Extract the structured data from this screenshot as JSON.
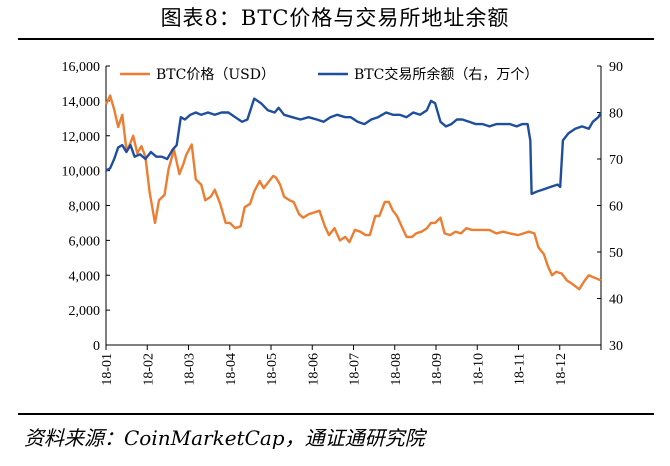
{
  "figure": {
    "title": "图表8：BTC价格与交易所地址余额",
    "source": "资料来源：CoinMarketCap，通证通研究院"
  },
  "chart_data": {
    "type": "line",
    "title": "图表8：BTC价格与交易所地址余额",
    "x_tick_labels": [
      "18-01",
      "18-02",
      "18-03",
      "18-04",
      "18-05",
      "18-06",
      "18-07",
      "18-08",
      "18-09",
      "18-10",
      "18-11",
      "18-12"
    ],
    "y_left": {
      "ticks": [
        "0",
        "2,000",
        "4,000",
        "6,000",
        "8,000",
        "10,000",
        "12,000",
        "14,000",
        "16,000"
      ],
      "range": [
        0,
        16000
      ]
    },
    "y_right": {
      "ticks": [
        "30",
        "40",
        "50",
        "60",
        "70",
        "80",
        "90"
      ],
      "range": [
        30,
        90
      ]
    },
    "legend_placement": "top",
    "series": [
      {
        "name": "BTC价格（USD）",
        "axis": "left",
        "color": "#ED7D31",
        "points": [
          [
            "2018-01-01",
            13800
          ],
          [
            "2018-01-04",
            14300
          ],
          [
            "2018-01-07",
            13500
          ],
          [
            "2018-01-10",
            12500
          ],
          [
            "2018-01-13",
            13200
          ],
          [
            "2018-01-16",
            11200
          ],
          [
            "2018-01-18",
            11400
          ],
          [
            "2018-01-21",
            12000
          ],
          [
            "2018-01-24",
            11000
          ],
          [
            "2018-01-27",
            11400
          ],
          [
            "2018-01-30",
            10800
          ],
          [
            "2018-02-02",
            8800
          ],
          [
            "2018-02-06",
            7000
          ],
          [
            "2018-02-09",
            8300
          ],
          [
            "2018-02-13",
            8600
          ],
          [
            "2018-02-16",
            10100
          ],
          [
            "2018-02-20",
            11200
          ],
          [
            "2018-02-24",
            9800
          ],
          [
            "2018-02-27",
            10400
          ],
          [
            "2018-03-01",
            10900
          ],
          [
            "2018-03-05",
            11500
          ],
          [
            "2018-03-08",
            9500
          ],
          [
            "2018-03-12",
            9200
          ],
          [
            "2018-03-15",
            8300
          ],
          [
            "2018-03-19",
            8500
          ],
          [
            "2018-03-22",
            8900
          ],
          [
            "2018-03-26",
            8100
          ],
          [
            "2018-03-30",
            7000
          ],
          [
            "2018-04-02",
            7000
          ],
          [
            "2018-04-06",
            6700
          ],
          [
            "2018-04-10",
            6800
          ],
          [
            "2018-04-13",
            7900
          ],
          [
            "2018-04-17",
            8100
          ],
          [
            "2018-04-20",
            8800
          ],
          [
            "2018-04-24",
            9400
          ],
          [
            "2018-04-27",
            9000
          ],
          [
            "2018-04-30",
            9300
          ],
          [
            "2018-05-04",
            9700
          ],
          [
            "2018-05-06",
            9600
          ],
          [
            "2018-05-09",
            9200
          ],
          [
            "2018-05-12",
            8500
          ],
          [
            "2018-05-16",
            8300
          ],
          [
            "2018-05-19",
            8200
          ],
          [
            "2018-05-23",
            7500
          ],
          [
            "2018-05-26",
            7300
          ],
          [
            "2018-05-30",
            7500
          ],
          [
            "2018-06-03",
            7600
          ],
          [
            "2018-06-07",
            7700
          ],
          [
            "2018-06-11",
            6800
          ],
          [
            "2018-06-14",
            6300
          ],
          [
            "2018-06-18",
            6700
          ],
          [
            "2018-06-22",
            6000
          ],
          [
            "2018-06-26",
            6200
          ],
          [
            "2018-06-29",
            5900
          ],
          [
            "2018-07-03",
            6600
          ],
          [
            "2018-07-07",
            6500
          ],
          [
            "2018-07-11",
            6300
          ],
          [
            "2018-07-14",
            6300
          ],
          [
            "2018-07-18",
            7400
          ],
          [
            "2018-07-21",
            7400
          ],
          [
            "2018-07-25",
            8200
          ],
          [
            "2018-07-28",
            8200
          ],
          [
            "2018-07-31",
            7700
          ],
          [
            "2018-08-03",
            7400
          ],
          [
            "2018-08-07",
            6700
          ],
          [
            "2018-08-10",
            6200
          ],
          [
            "2018-08-14",
            6200
          ],
          [
            "2018-08-17",
            6400
          ],
          [
            "2018-08-21",
            6500
          ],
          [
            "2018-08-25",
            6700
          ],
          [
            "2018-08-28",
            7000
          ],
          [
            "2018-08-31",
            7000
          ],
          [
            "2018-09-04",
            7300
          ],
          [
            "2018-09-07",
            6400
          ],
          [
            "2018-09-11",
            6300
          ],
          [
            "2018-09-15",
            6500
          ],
          [
            "2018-09-19",
            6400
          ],
          [
            "2018-09-23",
            6700
          ],
          [
            "2018-09-27",
            6600
          ],
          [
            "2018-09-30",
            6600
          ],
          [
            "2018-10-05",
            6600
          ],
          [
            "2018-10-10",
            6600
          ],
          [
            "2018-10-15",
            6400
          ],
          [
            "2018-10-20",
            6500
          ],
          [
            "2018-10-25",
            6400
          ],
          [
            "2018-10-31",
            6300
          ],
          [
            "2018-11-04",
            6400
          ],
          [
            "2018-11-08",
            6500
          ],
          [
            "2018-11-12",
            6400
          ],
          [
            "2018-11-15",
            5600
          ],
          [
            "2018-11-19",
            5200
          ],
          [
            "2018-11-22",
            4500
          ],
          [
            "2018-11-25",
            4000
          ],
          [
            "2018-11-28",
            4200
          ],
          [
            "2018-12-02",
            4100
          ],
          [
            "2018-12-06",
            3700
          ],
          [
            "2018-12-10",
            3500
          ],
          [
            "2018-12-15",
            3200
          ],
          [
            "2018-12-19",
            3700
          ],
          [
            "2018-12-22",
            4000
          ],
          [
            "2018-12-25",
            3900
          ],
          [
            "2018-12-28",
            3800
          ],
          [
            "2018-12-31",
            3700
          ]
        ]
      },
      {
        "name": "BTC交易所余额（右，万个）",
        "axis": "right",
        "color": "#1F4E9F",
        "points": [
          [
            "2018-01-01",
            67.5
          ],
          [
            "2018-01-04",
            68
          ],
          [
            "2018-01-07",
            70
          ],
          [
            "2018-01-10",
            72.5
          ],
          [
            "2018-01-13",
            73
          ],
          [
            "2018-01-16",
            71.5
          ],
          [
            "2018-01-19",
            73
          ],
          [
            "2018-01-22",
            70.5
          ],
          [
            "2018-01-26",
            71
          ],
          [
            "2018-01-30",
            70
          ],
          [
            "2018-02-03",
            71.5
          ],
          [
            "2018-02-07",
            70.5
          ],
          [
            "2018-02-11",
            70.5
          ],
          [
            "2018-02-15",
            70
          ],
          [
            "2018-02-19",
            72
          ],
          [
            "2018-02-22",
            73
          ],
          [
            "2018-02-25",
            79
          ],
          [
            "2018-02-28",
            78.5
          ],
          [
            "2018-03-04",
            79.5
          ],
          [
            "2018-03-08",
            80
          ],
          [
            "2018-03-12",
            79.5
          ],
          [
            "2018-03-17",
            80
          ],
          [
            "2018-03-22",
            79.5
          ],
          [
            "2018-03-27",
            80
          ],
          [
            "2018-04-01",
            80
          ],
          [
            "2018-04-06",
            79
          ],
          [
            "2018-04-11",
            78
          ],
          [
            "2018-04-15",
            78.5
          ],
          [
            "2018-04-20",
            83
          ],
          [
            "2018-04-25",
            82
          ],
          [
            "2018-04-30",
            80.5
          ],
          [
            "2018-05-05",
            80
          ],
          [
            "2018-05-08",
            81
          ],
          [
            "2018-05-12",
            79.5
          ],
          [
            "2018-05-18",
            79
          ],
          [
            "2018-05-24",
            78.5
          ],
          [
            "2018-05-30",
            79
          ],
          [
            "2018-06-05",
            78.5
          ],
          [
            "2018-06-10",
            78
          ],
          [
            "2018-06-15",
            79
          ],
          [
            "2018-06-20",
            79.5
          ],
          [
            "2018-06-26",
            79
          ],
          [
            "2018-06-30",
            79
          ],
          [
            "2018-07-05",
            78
          ],
          [
            "2018-07-10",
            77.5
          ],
          [
            "2018-07-15",
            78.5
          ],
          [
            "2018-07-20",
            79
          ],
          [
            "2018-07-26",
            80
          ],
          [
            "2018-07-31",
            79.5
          ],
          [
            "2018-08-05",
            79.5
          ],
          [
            "2018-08-10",
            79
          ],
          [
            "2018-08-15",
            80
          ],
          [
            "2018-08-20",
            79.5
          ],
          [
            "2018-08-25",
            80.5
          ],
          [
            "2018-08-28",
            82.5
          ],
          [
            "2018-08-31",
            82
          ],
          [
            "2018-09-04",
            78
          ],
          [
            "2018-09-08",
            77
          ],
          [
            "2018-09-12",
            77.5
          ],
          [
            "2018-09-16",
            78.5
          ],
          [
            "2018-09-20",
            78.5
          ],
          [
            "2018-09-25",
            78
          ],
          [
            "2018-09-30",
            77.5
          ],
          [
            "2018-10-05",
            77.5
          ],
          [
            "2018-10-10",
            77
          ],
          [
            "2018-10-15",
            77.5
          ],
          [
            "2018-10-20",
            77.5
          ],
          [
            "2018-10-25",
            77.5
          ],
          [
            "2018-10-30",
            77
          ],
          [
            "2018-11-03",
            77.5
          ],
          [
            "2018-11-07",
            77.5
          ],
          [
            "2018-11-09",
            74
          ],
          [
            "2018-11-10",
            62.5
          ],
          [
            "2018-11-14",
            63
          ],
          [
            "2018-11-19",
            63.5
          ],
          [
            "2018-11-24",
            64
          ],
          [
            "2018-11-29",
            64.5
          ],
          [
            "2018-12-01",
            64
          ],
          [
            "2018-12-03",
            74
          ],
          [
            "2018-12-07",
            75.5
          ],
          [
            "2018-12-12",
            76.5
          ],
          [
            "2018-12-17",
            77
          ],
          [
            "2018-12-22",
            76.5
          ],
          [
            "2018-12-25",
            78
          ],
          [
            "2018-12-29",
            79
          ],
          [
            "2018-12-31",
            80
          ]
        ]
      }
    ]
  }
}
